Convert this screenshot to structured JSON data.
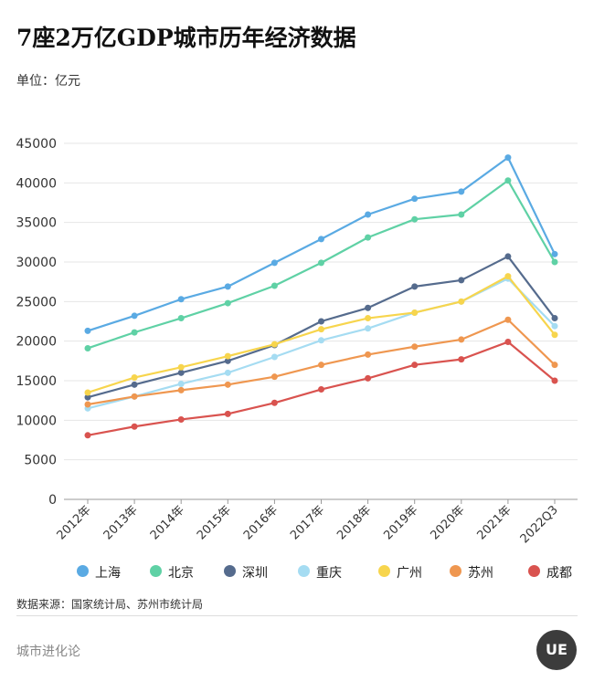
{
  "header": {
    "title": "7座2万亿GDP城市历年经济数据",
    "unit": "单位：亿元"
  },
  "footer": {
    "source": "数据来源：国家统计局、苏州市统计局",
    "brand": "城市进化论",
    "logo_text": "UE"
  },
  "colors": {
    "grid": "#e6e6e6",
    "axis": "#999999",
    "tick_text": "#333333"
  },
  "chart_data": {
    "type": "line",
    "title": "7座2万亿GDP城市历年经济数据",
    "ylabel": "单位：亿元",
    "xlabel": "",
    "ylim": [
      0,
      45000
    ],
    "yticks": [
      "0",
      "5000",
      "10000",
      "15000",
      "20000",
      "25000",
      "30000",
      "35000",
      "40000",
      "45000"
    ],
    "grid": true,
    "legend_position": "bottom",
    "categories": [
      "2012年",
      "2013年",
      "2014年",
      "2015年",
      "2016年",
      "2017年",
      "2018年",
      "2019年",
      "2020年",
      "2021年",
      "2022Q3"
    ],
    "series": [
      {
        "name": "上海",
        "color": "#5aaae3",
        "values": [
          21300,
          23200,
          25300,
          26900,
          29900,
          32900,
          36000,
          38000,
          38900,
          43200,
          31000
        ]
      },
      {
        "name": "北京",
        "color": "#5fd1a5",
        "values": [
          19100,
          21100,
          22900,
          24800,
          27000,
          29900,
          33100,
          35400,
          36000,
          40300,
          30000
        ]
      },
      {
        "name": "深圳",
        "color": "#556b8d",
        "values": [
          12900,
          14500,
          16000,
          17500,
          19500,
          22500,
          24200,
          26900,
          27700,
          30700,
          22900
        ]
      },
      {
        "name": "重庆",
        "color": "#a5dcf2",
        "values": [
          11500,
          13000,
          14600,
          16000,
          18000,
          20100,
          21600,
          23600,
          25000,
          27900,
          21900
        ]
      },
      {
        "name": "广州",
        "color": "#f7d54d",
        "values": [
          13500,
          15400,
          16700,
          18100,
          19600,
          21500,
          22900,
          23600,
          25000,
          28200,
          20800
        ]
      },
      {
        "name": "苏州",
        "color": "#ef9750",
        "values": [
          12000,
          13000,
          13800,
          14500,
          15500,
          17000,
          18300,
          19300,
          20200,
          22700,
          17000
        ]
      },
      {
        "name": "成都",
        "color": "#d9534f",
        "values": [
          8100,
          9200,
          10100,
          10800,
          12200,
          13900,
          15300,
          17000,
          17700,
          19900,
          15000
        ]
      }
    ]
  }
}
